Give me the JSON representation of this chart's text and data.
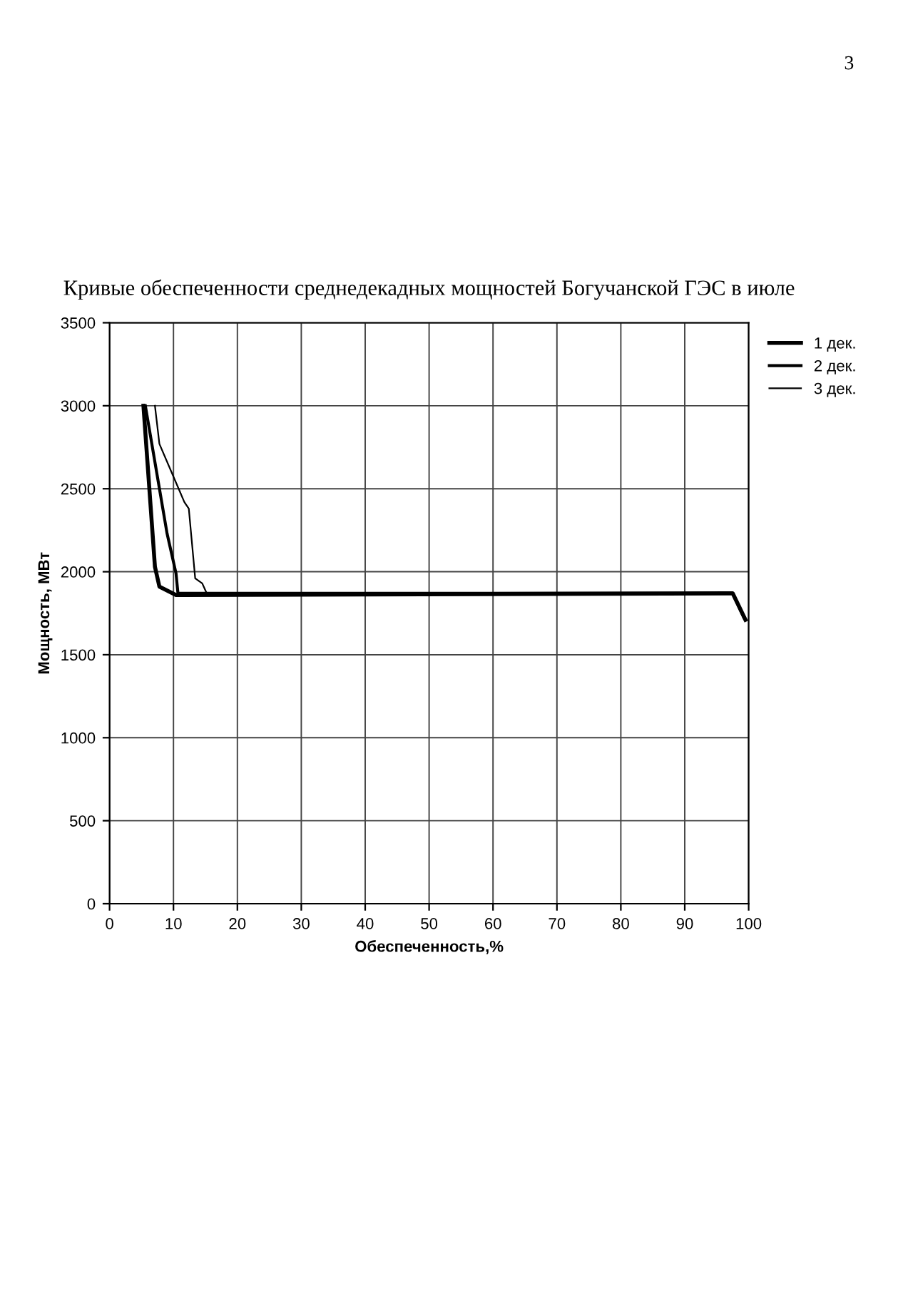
{
  "chart_data": {
    "type": "line",
    "title": "Кривые обеспеченности среднедекадных мощностей Богучанской ГЭС в июле",
    "xlabel": "Обеспеченность,%",
    "ylabel": "Мощность, МВт",
    "xlim": [
      0,
      100
    ],
    "xticks": [
      0,
      10,
      20,
      30,
      40,
      50,
      60,
      70,
      80,
      90,
      100
    ],
    "ylim": [
      0,
      3500
    ],
    "yticks": [
      0,
      500,
      1000,
      1500,
      2000,
      2500,
      3000,
      3500
    ],
    "grid": true,
    "legend": "top right",
    "marker": "none",
    "line_style": "solid",
    "annotations": [
      "3"
    ],
    "series": [
      {
        "name": "1 дек.",
        "color": "#000000",
        "x": [
          5.3,
          7.1,
          7.8,
          10.4,
          97.5,
          99.5
        ],
        "values": [
          3000,
          2030,
          1910,
          1860,
          1870,
          1710
        ]
      },
      {
        "name": "2 дек.",
        "color": "#000000",
        "x": [
          5.6,
          9.0,
          10.4,
          10.7,
          97.5,
          99.3
        ],
        "values": [
          3000,
          2230,
          1990,
          1870,
          1870,
          1720
        ]
      },
      {
        "name": "3 дек.",
        "color": "#000000",
        "x": [
          7.1,
          7.8,
          11.7,
          12.4,
          13.4,
          14.5,
          15.2,
          97.5,
          99.1
        ],
        "values": [
          3000,
          2770,
          2420,
          2380,
          1960,
          1930,
          1870,
          1870,
          1730
        ]
      }
    ]
  }
}
